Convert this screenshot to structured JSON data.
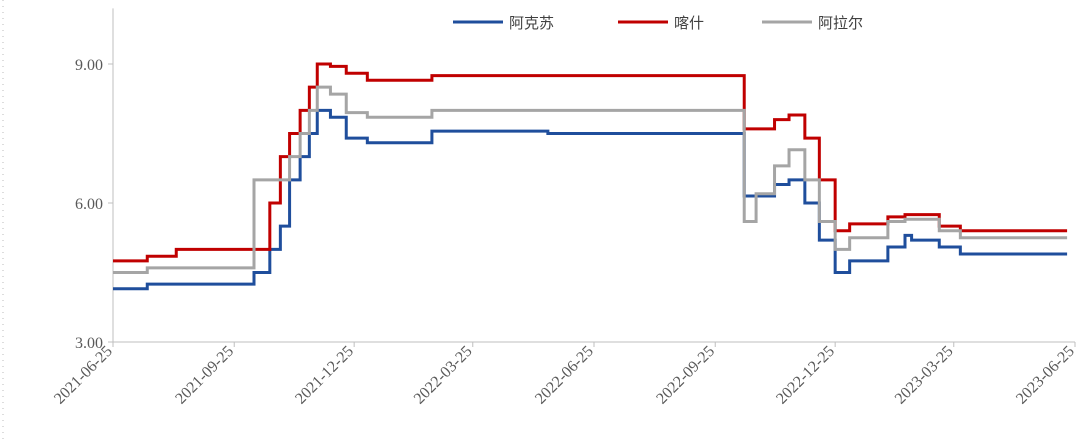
{
  "chart_data": {
    "type": "line",
    "step": "after",
    "x": [
      "2021-06-25",
      "2021-07-21",
      "2021-08-12",
      "2021-10-10",
      "2021-10-22",
      "2021-10-30",
      "2021-11-06",
      "2021-11-14",
      "2021-11-21",
      "2021-11-27",
      "2021-12-07",
      "2021-12-19",
      "2022-01-04",
      "2022-02-22",
      "2022-05-21",
      "2022-10-17",
      "2022-10-26",
      "2022-11-09",
      "2022-11-20",
      "2022-12-02",
      "2022-12-13",
      "2022-12-25",
      "2023-01-05",
      "2023-02-03",
      "2023-02-16",
      "2023-02-21",
      "2023-03-14",
      "2023-03-30",
      "2023-06-19"
    ],
    "series": [
      {
        "name": "阿克苏",
        "color": "#1f4e9c",
        "values": [
          4.15,
          4.25,
          4.25,
          4.5,
          5.0,
          5.5,
          6.5,
          7.0,
          7.5,
          8.0,
          7.85,
          7.4,
          7.3,
          7.55,
          7.5,
          6.15,
          6.15,
          6.4,
          6.5,
          6.0,
          5.2,
          4.5,
          4.75,
          5.05,
          5.3,
          5.2,
          5.05,
          4.9,
          4.9
        ]
      },
      {
        "name": "喀什",
        "color": "#c00000",
        "values": [
          4.75,
          4.85,
          5.0,
          5.0,
          6.0,
          7.0,
          7.5,
          8.0,
          8.5,
          9.0,
          8.95,
          8.8,
          8.65,
          8.75,
          8.75,
          7.6,
          7.6,
          7.8,
          7.9,
          7.4,
          6.5,
          5.4,
          5.55,
          5.7,
          5.75,
          5.75,
          5.5,
          5.4,
          5.4
        ]
      },
      {
        "name": "阿拉尔",
        "color": "#a5a5a5",
        "values": [
          4.5,
          4.6,
          4.6,
          6.5,
          6.5,
          6.5,
          7.0,
          7.5,
          8.0,
          8.5,
          8.35,
          7.95,
          7.85,
          8.0,
          8.0,
          5.6,
          6.2,
          6.8,
          7.15,
          6.5,
          5.6,
          5.0,
          5.25,
          5.6,
          5.65,
          5.65,
          5.4,
          5.25,
          5.25
        ]
      }
    ],
    "xlim": [
      "2021-06-25",
      "2023-06-25"
    ],
    "xticks": [
      "2021-06-25",
      "2021-09-25",
      "2021-12-25",
      "2022-03-25",
      "2022-06-25",
      "2022-09-25",
      "2022-12-25",
      "2023-03-25",
      "2023-06-25"
    ],
    "ylim": [
      3,
      10.2
    ],
    "yticks": [
      {
        "value": 3,
        "label": "3.00"
      },
      {
        "value": 6,
        "label": "6.00"
      },
      {
        "value": 9,
        "label": "9.00"
      }
    ]
  }
}
